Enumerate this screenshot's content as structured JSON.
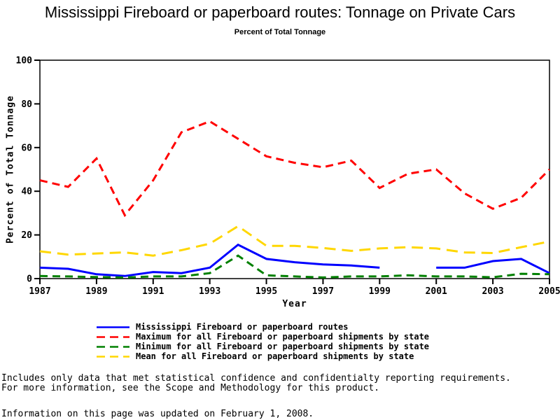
{
  "title": "Mississippi Fireboard or paperboard routes: Tonnage on Private Cars",
  "subtitle": "Percent of Total Tonnage",
  "footnotes": [
    "Includes only data that met statistical confidence and confidentialty reporting requirements.",
    "For more information, see the Scope and Methodology for this product.",
    "Information on this page was updated on February 1, 2008."
  ],
  "chart_data": {
    "type": "line",
    "title": "Mississippi Fireboard or paperboard routes: Tonnage on Private Cars",
    "subtitle": "Percent of Total Tonnage",
    "xlabel": "Year",
    "ylabel": "Percent of Total Tonnage",
    "ylim": [
      0,
      100
    ],
    "yticks": [
      0,
      20,
      40,
      60,
      80,
      100
    ],
    "xticks": [
      1987,
      1989,
      1991,
      1993,
      1995,
      1997,
      1999,
      2001,
      2003,
      2005
    ],
    "grid": false,
    "legend_position": "bottom",
    "x": [
      1987,
      1988,
      1989,
      1990,
      1991,
      1992,
      1993,
      1994,
      1995,
      1996,
      1997,
      1998,
      1999,
      2000,
      2001,
      2002,
      2003,
      2004,
      2005
    ],
    "series": [
      {
        "name": "Mississippi Fireboard or paperboard routes",
        "color": "#0000ff",
        "style": "solid",
        "values": [
          5,
          4.5,
          2,
          1.2,
          3,
          2.5,
          5,
          15.5,
          9,
          7.5,
          6.5,
          6,
          5,
          null,
          5,
          5,
          8,
          9,
          2.5
        ]
      },
      {
        "name": "Maximum for all Fireboard or paperboard shipments by state",
        "color": "#ff0000",
        "style": "dash",
        "values": [
          45,
          42,
          55,
          29,
          45,
          67,
          72,
          64,
          56,
          53,
          51,
          54,
          41.5,
          48,
          50,
          39,
          32,
          37,
          50
        ]
      },
      {
        "name": "Minimum for all Fireboard or paperboard shipments by state",
        "color": "#008000",
        "style": "dash",
        "values": [
          1.2,
          1,
          0.7,
          0.5,
          1,
          1,
          2.5,
          10.5,
          1.5,
          1,
          0.5,
          1,
          1,
          1.5,
          1,
          1,
          0.6,
          2.2,
          2
        ]
      },
      {
        "name": "Mean for all Fireboard or paperboard shipments by state",
        "color": "#ffd700",
        "style": "long-dash",
        "values": [
          12.5,
          11,
          11.5,
          12,
          10.5,
          13,
          16,
          24,
          15,
          15,
          14,
          12.7,
          13.8,
          14.4,
          13.8,
          12,
          11.7,
          14.4,
          17
        ]
      }
    ]
  }
}
